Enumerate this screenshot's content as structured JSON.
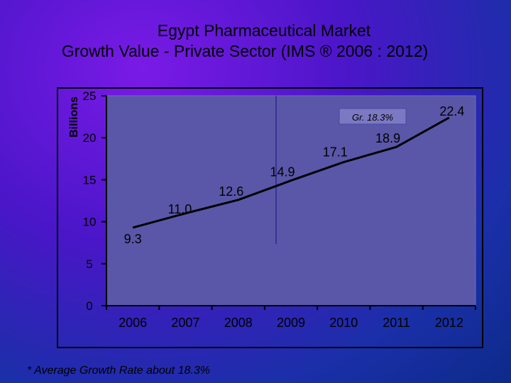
{
  "chart_data": {
    "type": "line",
    "title": "Egypt Pharmaceutical Market",
    "subtitle": "Growth Value - Private Sector (IMS ® 2006 : 2012)",
    "ylabel": "Billions",
    "xlabel": "",
    "categories": [
      "2006",
      "2007",
      "2008",
      "2009",
      "2010",
      "2011",
      "2012"
    ],
    "series": [
      {
        "values": [
          9.3,
          11.0,
          12.6,
          14.9,
          17.1,
          18.9,
          22.4
        ],
        "labels": [
          "9.3",
          "11.0",
          "12.6",
          "14.9",
          "17.1",
          "18.9",
          "22.4"
        ]
      }
    ],
    "ylim": [
      0,
      25
    ],
    "yticks": [
      "0",
      "5",
      "10",
      "15",
      "20",
      "25"
    ],
    "annotation": "Gr. 18.3%",
    "line_color": "#000000",
    "plot_bg": "#5a57a8"
  },
  "footnote": "* Average Growth Rate about 18.3%"
}
